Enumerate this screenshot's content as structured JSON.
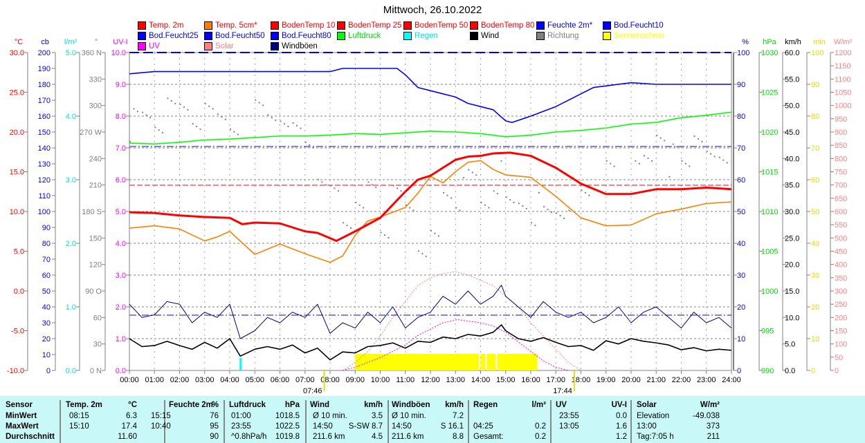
{
  "title": "Mittwoch, 26.10.2022",
  "legend": [
    {
      "label": "Temp. 2m",
      "color": "#ff0000",
      "text": "#ff0000"
    },
    {
      "label": "Temp. 5cm*",
      "color": "#ff8000",
      "text": "#ff0000"
    },
    {
      "label": "BodenTemp 10",
      "color": "#ff0000",
      "text": "#ff0000"
    },
    {
      "label": "BodenTemp 25",
      "color": "#ff0000",
      "text": "#ff0000"
    },
    {
      "label": "BodenTemp 50",
      "color": "#ff0000",
      "text": "#ff0000"
    },
    {
      "label": "BodenTemp 80",
      "color": "#ff0000",
      "text": "#ff0000"
    },
    {
      "label": "Feuchte 2m*",
      "color": "#0000ff",
      "text": "#0000ff"
    },
    {
      "label": "Bod.Feucht10",
      "color": "#0000ff",
      "text": "#0000ff"
    },
    {
      "label": "Bod.Feucht25",
      "color": "#0000ff",
      "text": "#0000ff"
    },
    {
      "label": "Bod.Feucht50",
      "color": "#0000ff",
      "text": "#0000ff"
    },
    {
      "label": "Bod.Feucht80",
      "color": "#0000ff",
      "text": "#0000ff"
    },
    {
      "label": "Luftdruck",
      "color": "#00ff00",
      "text": "#00dd00"
    },
    {
      "label": "Regen",
      "color": "#00ffff",
      "text": "#00e0e0"
    },
    {
      "label": "Wind",
      "color": "#000000",
      "text": "#000000"
    },
    {
      "label": "Richtung",
      "color": "#808080",
      "text": "#808080"
    },
    {
      "label": "Sonnenschein",
      "color": "#ffff00",
      "text": "#ffff00"
    },
    {
      "label": "UV",
      "color": "#ff00ff",
      "text": "#ff00ff"
    },
    {
      "label": "Solar",
      "color": "#ff8080",
      "text": "#ff8080"
    },
    {
      "label": "Windböen",
      "color": "#000080",
      "text": "#000000"
    }
  ],
  "chart_data": {
    "type": "line",
    "title": "Mittwoch, 26.10.2022",
    "x_ticks": [
      "00:00",
      "01:00",
      "02:00",
      "03:00",
      "04:00",
      "05:00",
      "06:00",
      "07:00",
      "08:00",
      "09:00",
      "10:00",
      "11:00",
      "12:00",
      "13:00",
      "14:00",
      "15:00",
      "16:00",
      "17:00",
      "18:00",
      "19:00",
      "20:00",
      "21:00",
      "22:00",
      "23:00",
      "24:00"
    ],
    "sunrise": "07:46",
    "sunset": "17:44",
    "axes": [
      {
        "unit": "°C",
        "color": "#ff0000",
        "side": "left",
        "range": [
          -10,
          30
        ],
        "ticks": [
          "30.0",
          "25.0",
          "20.0",
          "15.0",
          "10.0",
          "5.0",
          "0.0",
          "-5.0",
          "-10.0"
        ]
      },
      {
        "unit": "cb",
        "color": "#0000ff",
        "side": "left",
        "range": [
          0,
          200
        ],
        "ticks": [
          "200",
          "190",
          "180",
          "170",
          "160",
          "150",
          "140",
          "130",
          "120",
          "110",
          "100",
          "90",
          "80",
          "70",
          "60",
          "50",
          "40",
          "30",
          "20",
          "10",
          "0"
        ]
      },
      {
        "unit": "l/m²",
        "color": "#00e0e0",
        "side": "left",
        "range": [
          0,
          5
        ],
        "ticks": [
          "5.0",
          "4.0",
          "3.0",
          "2.0",
          "1.0",
          "0.0"
        ]
      },
      {
        "unit": "°",
        "color": "#808080",
        "side": "left",
        "range": [
          0,
          360
        ],
        "ticks": [
          "360 N",
          "330",
          "300",
          "270 W",
          "240",
          "210",
          "180 S",
          "150",
          "120",
          "90 O",
          "60",
          "30",
          "0 N"
        ]
      },
      {
        "unit": "UV-I",
        "color": "#ff00ff",
        "side": "left",
        "range": [
          0,
          10
        ],
        "ticks": [
          "10.0",
          "9.0",
          "8.0",
          "7.0",
          "6.0",
          "5.0",
          "4.0",
          "3.0",
          "2.0",
          "1.0",
          "0.0"
        ]
      },
      {
        "unit": "%",
        "color": "#0000ff",
        "side": "right",
        "range": [
          0,
          100
        ],
        "ticks": [
          "100",
          "90",
          "80",
          "70",
          "60",
          "50",
          "40",
          "30",
          "20",
          "10",
          "0"
        ]
      },
      {
        "unit": "hPa",
        "color": "#00dd00",
        "side": "right",
        "range": [
          990,
          1030
        ],
        "ticks": [
          "1030",
          "1025",
          "1020",
          "1015",
          "1010",
          "1005",
          "1000",
          "995",
          "990"
        ]
      },
      {
        "unit": "km/h",
        "color": "#000000",
        "side": "right",
        "range": [
          0,
          60
        ],
        "ticks": [
          "60.0",
          "55.0",
          "50.0",
          "45.0",
          "40.0",
          "35.0",
          "30.0",
          "25.0",
          "20.0",
          "15.0",
          "10.0",
          "5.0",
          "0.0"
        ]
      },
      {
        "unit": "min",
        "color": "#e0e000",
        "side": "right",
        "range": [
          0,
          100
        ],
        "ticks": [
          "100",
          "90",
          "80",
          "70",
          "60",
          "50",
          "40",
          "30",
          "20",
          "10",
          "0"
        ]
      },
      {
        "unit": "W/m²",
        "color": "#ff8080",
        "side": "right",
        "range": [
          0,
          1200
        ],
        "ticks": [
          "1200",
          "1150",
          "1100",
          "1050",
          "1000",
          "950",
          "900",
          "850",
          "800",
          "750",
          "700",
          "650",
          "600",
          "550",
          "500",
          "450",
          "400",
          "350",
          "300",
          "250",
          "200",
          "150",
          "100",
          "50",
          "0"
        ]
      }
    ],
    "series": [
      {
        "name": "Feuchte 2m*",
        "axis": "%",
        "color": "#0000ff",
        "width": 1.6,
        "x": [
          0,
          1,
          2,
          3,
          4,
          5,
          6,
          7,
          7.5,
          8,
          8.5,
          9,
          10,
          10.67,
          11,
          11.5,
          12,
          13,
          13.5,
          14,
          14.5,
          15,
          15.25,
          16,
          17,
          18,
          18.5,
          19,
          20,
          21,
          22,
          23,
          24
        ],
        "y": [
          93.3,
          94,
          94,
          94,
          94,
          94,
          94,
          94,
          94,
          94,
          95,
          95,
          95,
          95,
          93,
          89,
          88,
          86,
          84,
          83,
          82,
          78.5,
          78,
          80,
          83,
          87,
          89,
          89.5,
          90.5,
          90,
          90,
          90,
          90
        ]
      },
      {
        "name": "Luftdruck",
        "axis": "hPa",
        "color": "#00ff00",
        "width": 1.6,
        "x": [
          0,
          1,
          2,
          3,
          4,
          5,
          6,
          7,
          8,
          9,
          10,
          11,
          12,
          13,
          14,
          15,
          16,
          17,
          18,
          19,
          20,
          21,
          22,
          23,
          24
        ],
        "y": [
          1018.6,
          1018.5,
          1018.7,
          1019,
          1019.1,
          1019.3,
          1019.5,
          1019.5,
          1019.6,
          1019.8,
          1019.7,
          1019.9,
          1020.1,
          1020,
          1019.8,
          1019.4,
          1019.6,
          1020,
          1020.2,
          1020.5,
          1021,
          1021.2,
          1021.8,
          1022.1,
          1022.5
        ]
      },
      {
        "name": "Temp. 5cm*",
        "axis": "°C",
        "color": "#ff8000",
        "width": 1.6,
        "x": [
          0,
          1,
          2,
          3,
          3.5,
          4,
          5,
          6,
          7,
          8,
          8.5,
          9,
          9.5,
          10,
          11,
          11.5,
          12,
          12.5,
          13,
          13.5,
          14,
          14.5,
          15,
          16,
          17,
          18,
          19,
          20,
          21,
          22,
          23,
          24
        ],
        "y": [
          7.9,
          8.2,
          7.8,
          6.3,
          6.8,
          7.5,
          4.6,
          5.9,
          4.7,
          3.6,
          4.4,
          7,
          8.8,
          9.3,
          10.5,
          12.3,
          14.4,
          13.6,
          15,
          16.2,
          16.4,
          15.3,
          14.6,
          14.3,
          11.9,
          9.2,
          8.2,
          8.3,
          9.7,
          10.3,
          11,
          11.2
        ]
      },
      {
        "name": "Temp. 2m",
        "axis": "°C",
        "color": "#ff0000",
        "width": 3,
        "x": [
          0,
          1,
          2,
          3,
          4,
          4.5,
          5,
          6,
          7,
          7.5,
          8.25,
          9,
          10,
          11,
          11.5,
          12,
          12.5,
          13,
          13.5,
          14,
          14.5,
          15.17,
          16,
          17,
          18,
          19,
          20,
          21,
          22,
          23,
          24
        ],
        "y": [
          9.9,
          9.8,
          9.5,
          9.3,
          9.2,
          8.4,
          8.6,
          8.5,
          7.5,
          7.3,
          6.3,
          7.5,
          9.2,
          12.5,
          14,
          14.5,
          15.5,
          16.5,
          16.9,
          17,
          17.3,
          17.4,
          17,
          15.5,
          13.5,
          12.2,
          12.2,
          12.8,
          12.8,
          13,
          12.8
        ]
      },
      {
        "name": "Windböen",
        "axis": "km/h",
        "color": "#000080",
        "width": 1,
        "x": [
          0,
          0.5,
          1,
          1.5,
          2,
          2.5,
          3,
          3.5,
          4,
          4.42,
          5,
          5.5,
          6,
          6.5,
          7,
          7.5,
          8,
          8.5,
          9,
          9.5,
          10,
          10.5,
          11,
          11.5,
          12,
          12.5,
          13,
          13.5,
          14,
          14.5,
          14.83,
          15,
          15.5,
          16,
          16.5,
          17,
          17.5,
          18,
          18.5,
          19,
          19.5,
          20,
          20.5,
          21,
          21.5,
          22,
          22.5,
          23,
          23.5,
          24
        ],
        "y": [
          12.5,
          10,
          10.5,
          13,
          12.5,
          9,
          11,
          10,
          12.5,
          6,
          7.5,
          10,
          9,
          11,
          10,
          12.5,
          7,
          9,
          8,
          11,
          9,
          12,
          8,
          10,
          11,
          14,
          12.5,
          15,
          12.5,
          14,
          16.1,
          14,
          12,
          10,
          13,
          11,
          10,
          11,
          9,
          10,
          12,
          9,
          11,
          12,
          10,
          8,
          11,
          9,
          10,
          8
        ]
      },
      {
        "name": "Wind",
        "axis": "km/h",
        "color": "#000000",
        "width": 1.6,
        "x": [
          0,
          0.5,
          1,
          1.5,
          2,
          2.5,
          3,
          3.5,
          4,
          4.42,
          5,
          5.5,
          6,
          6.5,
          7,
          7.5,
          8,
          8.5,
          9,
          9.5,
          10,
          10.5,
          11,
          11.5,
          12,
          12.5,
          13,
          13.5,
          14,
          14.5,
          14.83,
          15,
          15.5,
          16,
          16.5,
          17,
          17.5,
          18,
          18.5,
          19,
          19.5,
          20,
          20.5,
          21,
          21.5,
          22,
          22.5,
          23,
          23.5,
          24
        ],
        "y": [
          6,
          4.5,
          4.7,
          5.5,
          4.7,
          4,
          5.3,
          4.2,
          6,
          2.7,
          4,
          4.5,
          4,
          4.8,
          3.3,
          4.2,
          2,
          3.5,
          3.3,
          4.5,
          4.7,
          5.2,
          4.2,
          5.5,
          5.3,
          6.3,
          6,
          6.8,
          6.5,
          7.2,
          8.6,
          7.5,
          6,
          5.5,
          6.2,
          5.3,
          4.5,
          4.7,
          3.8,
          5.6,
          5,
          6,
          5.5,
          5.2,
          4.8,
          3.9,
          4.3,
          3.7,
          4,
          3.8
        ]
      }
    ],
    "solar": {
      "axis": "W/m²",
      "color": "#ff8080",
      "x": [
        8.5,
        9,
        9.5,
        10,
        10.5,
        11,
        11.5,
        12,
        12.5,
        13,
        13.5,
        14,
        14.5,
        15,
        15.5,
        16,
        16.5,
        17,
        17.5,
        18
      ],
      "y": [
        0,
        30,
        70,
        130,
        200,
        260,
        320,
        350,
        365,
        373,
        360,
        340,
        320,
        280,
        240,
        180,
        130,
        80,
        30,
        0
      ]
    },
    "uv": {
      "axis": "UV-I",
      "color": "#ff00ff",
      "x": [
        8.5,
        9,
        10,
        11,
        11.5,
        12,
        12.5,
        13.08,
        13.5,
        14,
        14.5,
        15,
        15.5,
        16,
        16.5,
        17,
        17.5
      ],
      "y": [
        0,
        0.1,
        0.4,
        0.8,
        1.1,
        1.3,
        1.5,
        1.6,
        1.55,
        1.5,
        1.4,
        1.2,
        0.9,
        0.6,
        0.3,
        0.1,
        0
      ]
    },
    "sunshine": {
      "axis": "min",
      "color": "#ffff00",
      "from": 9,
      "to": 16.17,
      "gaps": [
        13.92,
        14.17,
        14.58
      ],
      "value_per_5min": 5
    },
    "rain": {
      "axis": "l/m²",
      "color": "#00ffff",
      "time": 4.42,
      "value": 0.2
    },
    "direction": {
      "axis": "°",
      "color": "#808080",
      "x": [
        0,
        0.5,
        1,
        1.5,
        2,
        2.5,
        3,
        3.5,
        4,
        5,
        5.5,
        6,
        6.5,
        7,
        7.5,
        8,
        8.5,
        9,
        9.5,
        10,
        10.5,
        11,
        11.5,
        12,
        12.5,
        13,
        13.5,
        14,
        14.5,
        15,
        15.5,
        16,
        16.5,
        17,
        17.5,
        18,
        19,
        20,
        20.5,
        21,
        21.5,
        22,
        22.5,
        23,
        23.5
      ],
      "y": [
        280,
        300,
        270,
        290,
        310,
        275,
        285,
        300,
        270,
        290,
        300,
        280,
        265,
        270,
        215,
        195,
        180,
        190,
        200,
        170,
        210,
        175,
        150,
        160,
        190,
        200,
        230,
        180,
        220,
        200,
        180,
        185,
        190,
        170,
        200,
        210,
        230,
        220,
        250,
        260,
        240,
        245,
        260,
        230,
        250
      ]
    }
  },
  "stats": {
    "headers": [
      "Sensor",
      "Temp. 2m",
      "°C",
      "Feuchte 2m",
      "%",
      "Luftdruck",
      "hPa",
      "Wind",
      "km/h",
      "Windböen",
      "km/h",
      "Regen",
      "l/m²",
      "UV",
      "UV-I",
      "Solar",
      "W/m²"
    ],
    "rows": [
      {
        "label": "MinWert",
        "cells": [
          "08:15",
          "6.3",
          "15:15",
          "76",
          "01:00",
          "1018.5",
          "Ø 10 min.",
          "3.5",
          "Ø 10 min.",
          "7.2",
          "",
          "",
          "23:55",
          "0.0",
          "Elevation",
          "-49.038"
        ]
      },
      {
        "label": "MaxWert",
        "cells": [
          "15:10",
          "17.4",
          "10:40",
          "95",
          "23:55",
          "1022.5",
          "14:50",
          "S-SW 8.7",
          "14:50",
          "S 16.1",
          "04:25",
          "0.2",
          "13:05",
          "1.6",
          "13:00",
          "373"
        ]
      },
      {
        "label": "Durchschnitt",
        "cells": [
          "",
          "11.60",
          "",
          "90",
          "^0.8hPa/h",
          "1019.8",
          "211.6 km",
          "4.5",
          "211.6 km",
          "8.8",
          "Gesamt:",
          "0.2",
          "",
          "1.2",
          "Tag:7:05 h",
          "211"
        ]
      }
    ]
  }
}
